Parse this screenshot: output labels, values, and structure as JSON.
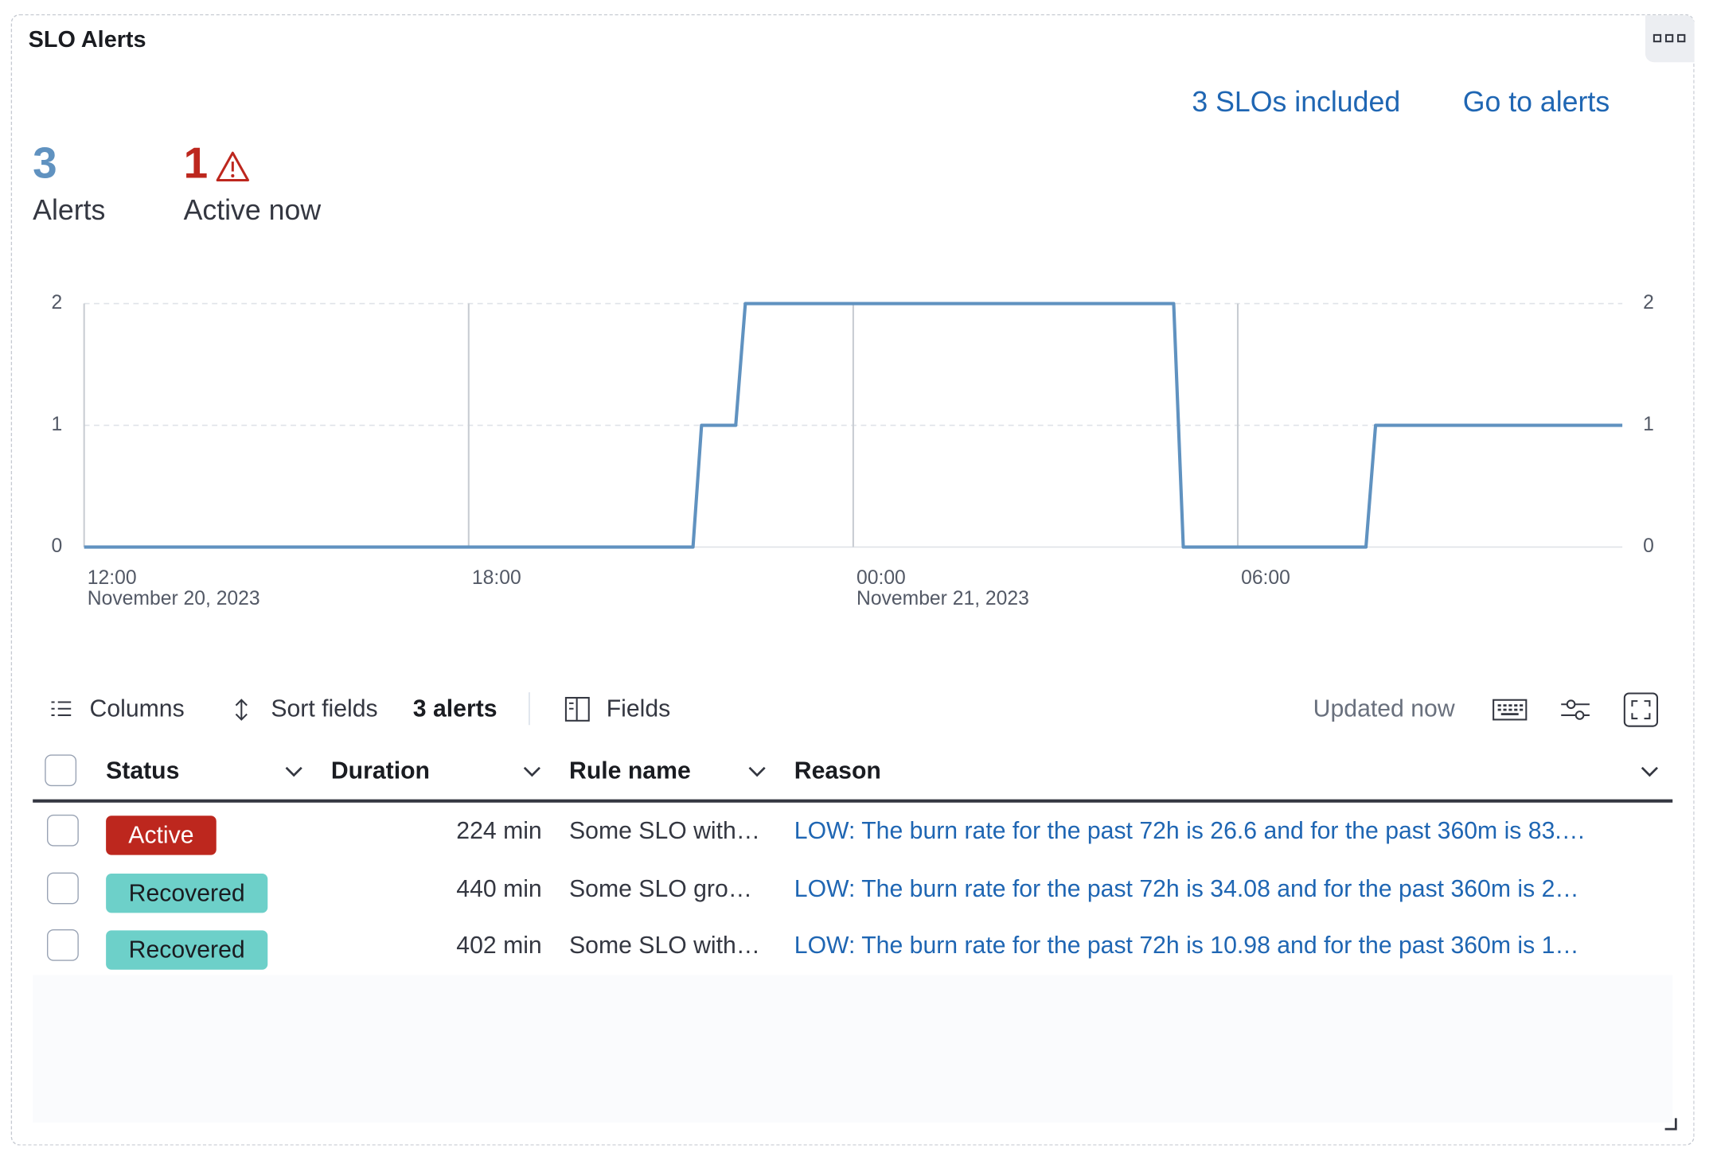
{
  "panel_title": "SLO Alerts",
  "links": [
    "3 SLOs included",
    "Go to alerts"
  ],
  "stats": [
    {
      "value": 3,
      "label": "Alerts"
    },
    {
      "value": 1,
      "label": "Active now"
    }
  ],
  "chart_data": {
    "type": "line",
    "x": [
      "2023-11-20 12:00",
      "2023-11-20 21:30",
      "2023-11-20 21:38",
      "2023-11-20 22:10",
      "2023-11-20 22:19",
      "2023-11-21 05:00",
      "2023-11-21 05:09",
      "2023-11-21 08:00",
      "2023-11-21 08:09",
      "2023-11-21 12:00"
    ],
    "series": [
      {
        "color": "#6092c0",
        "values": [
          0,
          0,
          1,
          1,
          2,
          2,
          0,
          0,
          1,
          1
        ]
      }
    ],
    "xlim": [
      "2023-11-20 12:00",
      "2023-11-21 12:00"
    ],
    "xticks": [
      {
        "value": "2023-11-20 12:00",
        "label": "12:00",
        "date": "November 20, 2023"
      },
      {
        "value": "2023-11-20 18:00",
        "label": "18:00"
      },
      {
        "value": "2023-11-21 00:00",
        "label": "00:00",
        "date": "November 21, 2023"
      },
      {
        "value": "2023-11-21 06:00",
        "label": "06:00"
      }
    ],
    "ylim": [
      0,
      2
    ],
    "yticks": [
      0,
      1,
      2
    ],
    "y2lim": [
      0,
      2
    ],
    "y2ticks": [
      0,
      1,
      2
    ],
    "grid": true
  },
  "toolbar": {
    "columns": "Columns",
    "sort": "Sort fields",
    "count": "3 alerts",
    "fields": "Fields",
    "updated": "Updated now"
  },
  "table": {
    "headers": [
      "Status",
      "Duration",
      "Rule name",
      "Reason"
    ],
    "rows": [
      [
        "Active",
        "224 min",
        "Some SLO with…",
        "LOW: The burn rate for the past 72h is 26.6 and for the past 360m is 83.…"
      ],
      [
        "Recovered",
        "440 min",
        "Some SLO gro…",
        "LOW: The burn rate for the past 72h is 34.08 and for the past 360m is 2…"
      ],
      [
        "Recovered",
        "402 min",
        "Some SLO with…",
        "LOW: The burn rate for the past 72h is 10.98 and for the past 360m is 1…"
      ]
    ]
  }
}
